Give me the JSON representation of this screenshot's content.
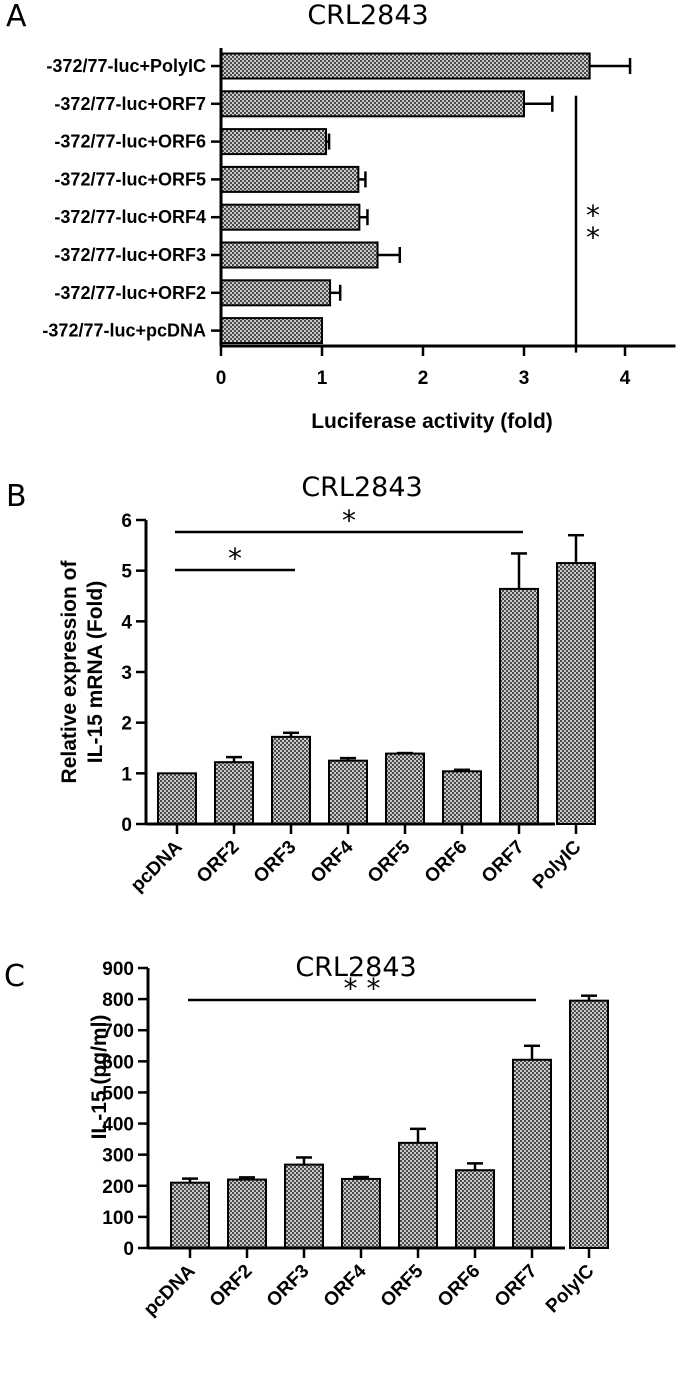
{
  "chart_data": [
    {
      "panel": "A",
      "type": "bar",
      "orientation": "horizontal",
      "title": "CRL2843",
      "xlabel": "Luciferase activity (fold)",
      "ylabel": "",
      "xlim": [
        0,
        4.5
      ],
      "ticks": [
        "0",
        "1",
        "2",
        "3",
        "4"
      ],
      "categories": [
        "-372/77-luc+PolyIC",
        "-372/77-luc+ORF7",
        "-372/77-luc+ORF6",
        "-372/77-luc+ORF5",
        "-372/77-luc+ORF4",
        "-372/77-luc+ORF3",
        "-372/77-luc+ORF2",
        "-372/77-luc+pcDNA"
      ],
      "values": [
        3.65,
        3.0,
        1.04,
        1.36,
        1.37,
        1.55,
        1.08,
        1.0
      ],
      "errors": [
        0.4,
        0.28,
        0.03,
        0.07,
        0.08,
        0.22,
        0.1,
        0.0
      ],
      "annotations": [
        {
          "text": "**",
          "from": "-372/77-luc+ORF7",
          "to": "-372/77-luc+pcDNA"
        }
      ]
    },
    {
      "panel": "B",
      "type": "bar",
      "title": "CRL2843",
      "xlabel": "",
      "ylabel": "Relative expression of IL-15 mRNA (Fold)",
      "ylabel_lines": [
        "Relative expression of",
        "IL-15 mRNA (Fold)"
      ],
      "ylim": [
        0,
        6
      ],
      "ticks": [
        "0",
        "1",
        "2",
        "3",
        "4",
        "5",
        "6"
      ],
      "categories": [
        "pcDNA",
        "ORF2",
        "ORF3",
        "ORF4",
        "ORF5",
        "ORF6",
        "ORF7",
        "PolyIC"
      ],
      "values": [
        1.0,
        1.22,
        1.72,
        1.25,
        1.39,
        1.04,
        4.64,
        5.15
      ],
      "errors": [
        0.0,
        0.1,
        0.08,
        0.05,
        0.01,
        0.03,
        0.7,
        0.55
      ],
      "annotations": [
        {
          "text": "*",
          "from": "pcDNA",
          "to": "ORF3"
        },
        {
          "text": "*",
          "from": "pcDNA",
          "to": "ORF7"
        }
      ]
    },
    {
      "panel": "C",
      "type": "bar",
      "title": "CRL2843",
      "xlabel": "",
      "ylabel": "IL-15 (pg/ml)",
      "ylim": [
        0,
        900
      ],
      "ticks": [
        "0",
        "100",
        "200",
        "300",
        "400",
        "500",
        "600",
        "700",
        "800",
        "900"
      ],
      "categories": [
        "pcDNA",
        "ORF2",
        "ORF3",
        "ORF4",
        "ORF5",
        "ORF6",
        "ORF7",
        "PolyIC"
      ],
      "values": [
        210,
        220,
        268,
        222,
        338,
        250,
        605,
        795
      ],
      "errors": [
        13,
        7,
        23,
        6,
        45,
        22,
        45,
        16
      ],
      "annotations": [
        {
          "text": "* *",
          "from": "pcDNA",
          "to": "ORF7"
        }
      ]
    }
  ]
}
